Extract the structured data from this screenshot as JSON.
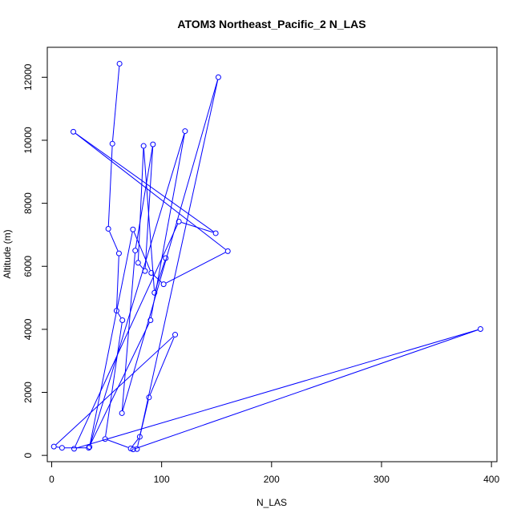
{
  "chart_data": {
    "type": "line",
    "title": "ATOM3 Northeast_Pacific_2 N_LAS",
    "xlabel": "N_LAS",
    "ylabel": "Altitude (m)",
    "xlim": [
      -4,
      405
    ],
    "ylim": [
      -200,
      12950
    ],
    "xticks": [
      0,
      100,
      200,
      300,
      400
    ],
    "yticks": [
      0,
      2000,
      4000,
      6000,
      8000,
      10000,
      12000
    ],
    "grid": false,
    "legend": "none",
    "color": "#0000ff",
    "marker": "open-circle",
    "series": [
      {
        "points": [
          [
            61.7,
            12430
          ],
          [
            55.2,
            9890
          ],
          [
            51.5,
            7190
          ],
          [
            61.2,
            6410
          ],
          [
            59.0,
            4590
          ],
          [
            64.3,
            4290
          ],
          [
            48.6,
            520
          ],
          [
            71.9,
            220
          ],
          [
            80.1,
            590
          ],
          [
            88.5,
            1840
          ],
          [
            112.3,
            3830
          ],
          [
            2.0,
            280
          ],
          [
            9.4,
            240
          ],
          [
            33.7,
            240
          ],
          [
            89.9,
            4290
          ],
          [
            121.3,
            10290
          ],
          [
            34.4,
            270
          ],
          [
            73.9,
            7170
          ],
          [
            90.6,
            5790
          ],
          [
            101.8,
            5430
          ],
          [
            160.2,
            6480
          ],
          [
            19.7,
            10270
          ],
          [
            149.2,
            7050
          ],
          [
            115.7,
            7420
          ],
          [
            20.4,
            210
          ],
          [
            390.0,
            4010
          ],
          [
            74.1,
            190
          ],
          [
            77.6,
            200
          ],
          [
            151.6,
            12000
          ],
          [
            63.9,
            1340
          ],
          [
            76.0,
            6500
          ],
          [
            92.1,
            9870
          ],
          [
            84.9,
            5850
          ],
          [
            78.6,
            6110
          ],
          [
            83.6,
            9820
          ],
          [
            93.5,
            5160
          ],
          [
            103.7,
            6260
          ]
        ]
      }
    ]
  }
}
